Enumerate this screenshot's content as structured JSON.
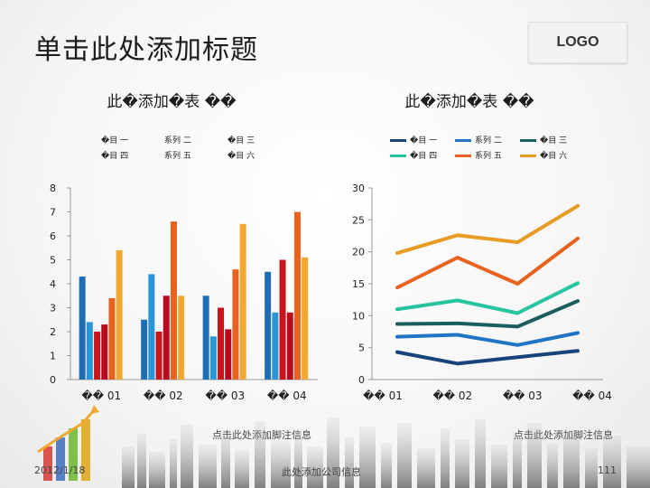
{
  "slide": {
    "title": "单击此处添加标题",
    "logo": "LOGO",
    "date": "2012/1/18",
    "footer_company": "此处添加公司信息",
    "page_number": "111",
    "colors": {
      "title": "#1d1d1d",
      "bg": "#ffffff"
    }
  },
  "chart_data": [
    {
      "type": "bar",
      "title": "此�添加�表 ��",
      "categories": [
        "�� 01",
        "�� 02",
        "�� 03",
        "�� 04"
      ],
      "ylim": [
        0,
        8
      ],
      "yticks": [
        0,
        1,
        2,
        3,
        4,
        5,
        6,
        7,
        8
      ],
      "legend": {
        "position": "top",
        "rows": [
          [
            "�目 一",
            "系列 二",
            "�目 三"
          ],
          [
            "�目 四",
            "系列 五",
            "�目 六"
          ]
        ]
      },
      "series": [
        {
          "name": "�目 一",
          "color": "#1f6eb5",
          "values": [
            4.3,
            2.5,
            3.5,
            4.5
          ]
        },
        {
          "name": "系列 二",
          "color": "#2994d6",
          "values": [
            2.4,
            4.4,
            1.8,
            2.8
          ]
        },
        {
          "name": "�目 三",
          "color": "#c8141c",
          "values": [
            2.0,
            2.0,
            3.0,
            5.0
          ]
        },
        {
          "name": "�目 四",
          "color": "#b80b1e",
          "values": [
            2.3,
            3.5,
            2.1,
            2.8
          ]
        },
        {
          "name": "系列 五",
          "color": "#e8631f",
          "values": [
            3.4,
            6.6,
            4.6,
            7.0
          ]
        },
        {
          "name": "�目 六",
          "color": "#f0a830",
          "values": [
            5.4,
            3.5,
            6.5,
            5.1
          ]
        }
      ]
    },
    {
      "type": "line",
      "title": "此�添加�表 ��",
      "categories": [
        "�� 01",
        "�� 02",
        "�� 03",
        "�� 04"
      ],
      "ylim": [
        0,
        30
      ],
      "yticks": [
        0,
        5,
        10,
        15,
        20,
        25,
        30
      ],
      "legend": {
        "position": "top",
        "rows": [
          [
            "�目 一",
            "系列 二",
            "�目 三"
          ],
          [
            "�目 四",
            "系列 五",
            "�目 六"
          ]
        ]
      },
      "series": [
        {
          "name": "�目 一",
          "color": "#17457a",
          "values": [
            4.3,
            2.5,
            3.5,
            4.5
          ]
        },
        {
          "name": "系列 二",
          "color": "#1f74c4",
          "values": [
            6.7,
            7.0,
            5.4,
            7.3
          ]
        },
        {
          "name": "�目 三",
          "color": "#1b5e5e",
          "values": [
            8.7,
            8.8,
            8.3,
            12.3
          ]
        },
        {
          "name": "�目 四",
          "color": "#27c4a0",
          "values": [
            11.0,
            12.4,
            10.4,
            15.1
          ]
        },
        {
          "name": "系列 五",
          "color": "#e8631f",
          "values": [
            14.4,
            19.1,
            15.0,
            22.1
          ]
        },
        {
          "name": "�目 六",
          "color": "#e89c24",
          "values": [
            19.8,
            22.6,
            21.5,
            27.2
          ]
        }
      ]
    }
  ],
  "annotations": {
    "note_left": "点击此处添加脚注信息",
    "note_right": "点击此处添加脚注信息"
  }
}
